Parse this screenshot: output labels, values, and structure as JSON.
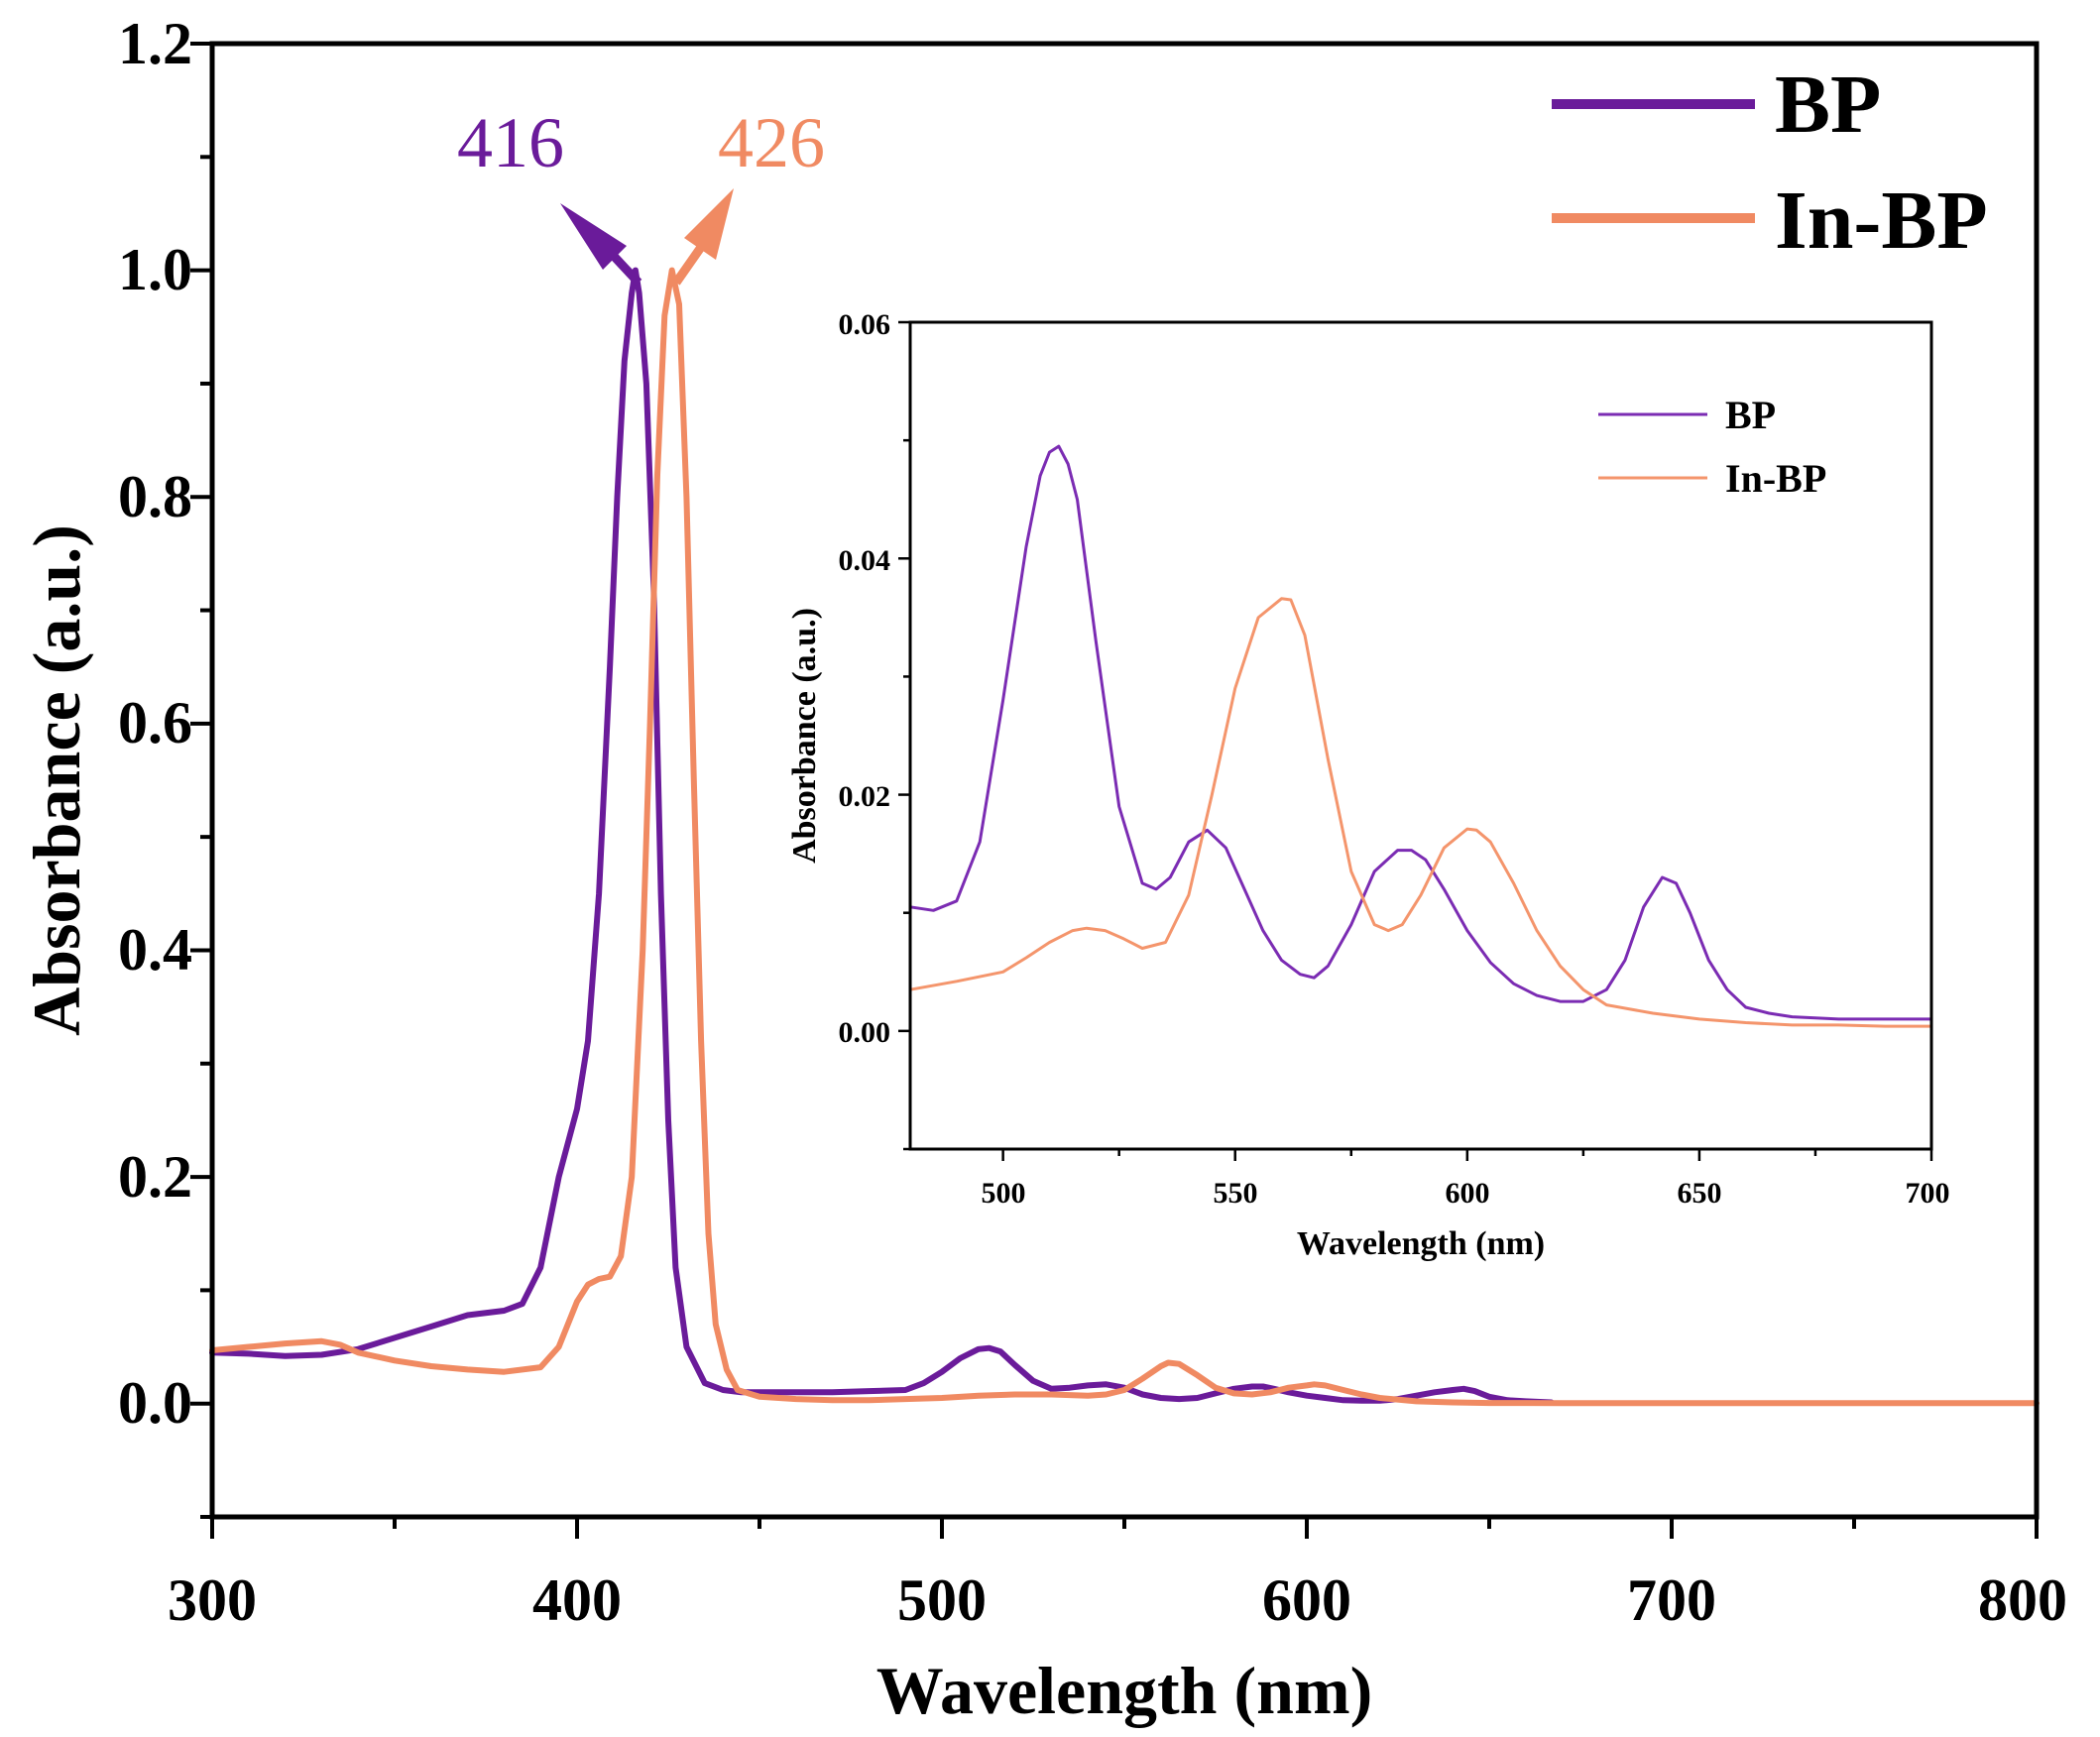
{
  "chart_data": [
    {
      "type": "line",
      "id": "main",
      "xlabel": "Wavelength (nm)",
      "ylabel": "Absorbance (a.u.)",
      "xlim": [
        300,
        800
      ],
      "ylim": [
        -0.1,
        1.2
      ],
      "xticks": [
        300,
        400,
        500,
        600,
        700,
        800
      ],
      "xtick_labels": [
        "300",
        "400",
        "500",
        "600",
        "700",
        "800"
      ],
      "yticks": [
        0.0,
        0.2,
        0.4,
        0.6,
        0.8,
        1.0,
        1.2
      ],
      "ytick_labels": [
        "0.0",
        "0.2",
        "0.4",
        "0.6",
        "0.8",
        "1.0",
        "1.2"
      ],
      "legend": {
        "position": "top-right",
        "entries": [
          "BP",
          "In-BP"
        ]
      },
      "annotations": [
        {
          "text": "416",
          "series": "BP",
          "x": 416,
          "y": 1.0,
          "color": "#6a1b9a"
        },
        {
          "text": "426",
          "series": "In-BP",
          "x": 426,
          "y": 1.0,
          "color": "#f08a62"
        }
      ],
      "series": [
        {
          "name": "BP",
          "color": "#6a1b9a",
          "x": [
            300,
            310,
            320,
            330,
            340,
            350,
            360,
            370,
            380,
            385,
            390,
            395,
            400,
            403,
            406,
            409,
            411,
            413,
            415,
            416,
            417,
            419,
            421,
            423,
            425,
            427,
            430,
            435,
            440,
            445,
            450,
            460,
            470,
            480,
            490,
            495,
            500,
            505,
            510,
            513,
            516,
            520,
            525,
            530,
            535,
            540,
            545,
            550,
            555,
            560,
            565,
            570,
            575,
            580,
            585,
            588,
            591,
            595,
            600,
            605,
            610,
            615,
            620,
            625,
            630,
            635,
            640,
            643,
            646,
            650,
            655,
            660,
            667
          ],
          "y": [
            0.045,
            0.044,
            0.042,
            0.043,
            0.048,
            0.058,
            0.068,
            0.078,
            0.082,
            0.088,
            0.12,
            0.2,
            0.26,
            0.32,
            0.45,
            0.65,
            0.8,
            0.92,
            0.98,
            1.0,
            0.98,
            0.9,
            0.72,
            0.45,
            0.25,
            0.12,
            0.05,
            0.018,
            0.012,
            0.01,
            0.01,
            0.01,
            0.01,
            0.011,
            0.012,
            0.018,
            0.028,
            0.04,
            0.048,
            0.049,
            0.046,
            0.034,
            0.02,
            0.013,
            0.014,
            0.016,
            0.017,
            0.014,
            0.008,
            0.005,
            0.004,
            0.005,
            0.009,
            0.013,
            0.015,
            0.015,
            0.013,
            0.01,
            0.007,
            0.005,
            0.003,
            0.0025,
            0.0025,
            0.004,
            0.007,
            0.01,
            0.012,
            0.013,
            0.011,
            0.006,
            0.003,
            0.002,
            0.001
          ]
        },
        {
          "name": "In-BP",
          "color": "#f08a62",
          "x": [
            300,
            310,
            320,
            330,
            335,
            340,
            350,
            360,
            370,
            380,
            390,
            395,
            400,
            403,
            406,
            409,
            412,
            415,
            418,
            420,
            422,
            424,
            426,
            428,
            430,
            432,
            434,
            436,
            438,
            441,
            444,
            450,
            460,
            470,
            480,
            490,
            500,
            510,
            520,
            530,
            540,
            545,
            550,
            555,
            560,
            562,
            565,
            570,
            575,
            580,
            585,
            590,
            595,
            600,
            602,
            605,
            610,
            615,
            620,
            630,
            640,
            650,
            660,
            670,
            680,
            700,
            750,
            800
          ],
          "y": [
            0.047,
            0.05,
            0.053,
            0.055,
            0.052,
            0.045,
            0.038,
            0.033,
            0.03,
            0.028,
            0.032,
            0.05,
            0.09,
            0.105,
            0.11,
            0.112,
            0.13,
            0.2,
            0.4,
            0.6,
            0.82,
            0.96,
            1.0,
            0.97,
            0.8,
            0.55,
            0.32,
            0.15,
            0.07,
            0.03,
            0.012,
            0.006,
            0.004,
            0.003,
            0.003,
            0.004,
            0.005,
            0.007,
            0.008,
            0.008,
            0.007,
            0.008,
            0.012,
            0.022,
            0.033,
            0.036,
            0.035,
            0.025,
            0.014,
            0.009,
            0.008,
            0.01,
            0.014,
            0.016,
            0.017,
            0.016,
            0.012,
            0.008,
            0.005,
            0.002,
            0.001,
            0.0005,
            0.0005,
            0.0004,
            0.0004,
            0.0003,
            0.0003,
            0.0003
          ]
        }
      ]
    },
    {
      "type": "line",
      "id": "inset",
      "xlabel": "Wavelength (nm)",
      "ylabel": "Absorbance (a.u.)",
      "xlim": [
        480,
        700
      ],
      "ylim": [
        -0.01,
        0.06
      ],
      "xticks": [
        500,
        550,
        600,
        650,
        700
      ],
      "xtick_labels": [
        "500",
        "550",
        "600",
        "650",
        "700"
      ],
      "yticks": [
        0.0,
        0.02,
        0.04,
        0.06
      ],
      "ytick_labels": [
        "0.00",
        "0.02",
        "0.04",
        "0.06"
      ],
      "legend": {
        "position": "top-right",
        "entries": [
          "BP",
          "In-BP"
        ]
      },
      "series": [
        {
          "name": "BP",
          "color": "#7b2cb3",
          "x": [
            480,
            485,
            490,
            495,
            500,
            505,
            508,
            510,
            512,
            514,
            516,
            520,
            525,
            530,
            533,
            536,
            540,
            544,
            548,
            552,
            556,
            560,
            564,
            567,
            570,
            575,
            580,
            585,
            588,
            591,
            595,
            600,
            605,
            610,
            615,
            620,
            625,
            630,
            634,
            638,
            642,
            645,
            648,
            652,
            656,
            660,
            665,
            670,
            680,
            690,
            700
          ],
          "y": [
            0.0105,
            0.0102,
            0.011,
            0.016,
            0.028,
            0.041,
            0.047,
            0.049,
            0.0495,
            0.048,
            0.045,
            0.033,
            0.019,
            0.0125,
            0.012,
            0.013,
            0.016,
            0.017,
            0.0155,
            0.012,
            0.0085,
            0.006,
            0.0048,
            0.0045,
            0.0055,
            0.009,
            0.0135,
            0.0153,
            0.0153,
            0.0145,
            0.012,
            0.0085,
            0.0058,
            0.004,
            0.003,
            0.0025,
            0.0025,
            0.0035,
            0.006,
            0.0105,
            0.013,
            0.0125,
            0.01,
            0.006,
            0.0035,
            0.002,
            0.0015,
            0.0012,
            0.001,
            0.001,
            0.001
          ]
        },
        {
          "name": "In-BP",
          "color": "#f4956c",
          "x": [
            480,
            490,
            500,
            505,
            510,
            515,
            518,
            522,
            526,
            530,
            535,
            540,
            545,
            550,
            555,
            560,
            562,
            565,
            570,
            575,
            580,
            583,
            586,
            590,
            595,
            600,
            602,
            605,
            610,
            615,
            620,
            625,
            630,
            640,
            650,
            660,
            670,
            680,
            690,
            700
          ],
          "y": [
            0.0035,
            0.0042,
            0.005,
            0.0062,
            0.0075,
            0.0085,
            0.0087,
            0.0085,
            0.0078,
            0.007,
            0.0075,
            0.0115,
            0.02,
            0.029,
            0.035,
            0.0366,
            0.0365,
            0.0335,
            0.023,
            0.0135,
            0.009,
            0.0085,
            0.009,
            0.0115,
            0.0155,
            0.0171,
            0.017,
            0.016,
            0.0125,
            0.0085,
            0.0055,
            0.0035,
            0.0022,
            0.0015,
            0.001,
            0.0007,
            0.0005,
            0.0005,
            0.0004,
            0.0004
          ]
        }
      ]
    }
  ]
}
